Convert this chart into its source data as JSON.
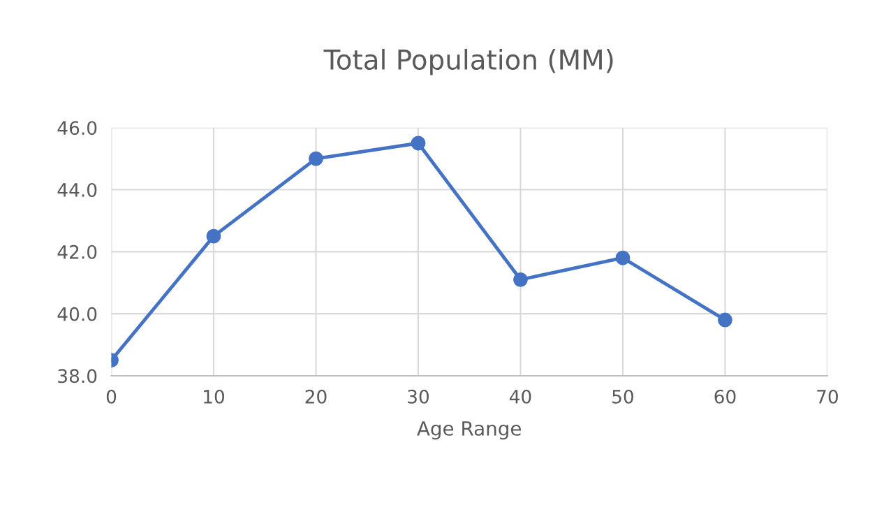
{
  "chart_data": {
    "type": "line",
    "title": "Total Population (MM)",
    "xlabel": "Age Range",
    "x": [
      0,
      10,
      20,
      30,
      40,
      50,
      60
    ],
    "series": [
      {
        "color": "#4472c4",
        "values": [
          38.5,
          42.5,
          45.0,
          45.5,
          41.1,
          41.8,
          39.8
        ]
      }
    ],
    "xlim": [
      0,
      70
    ],
    "xticks": [
      0,
      10,
      20,
      30,
      40,
      50,
      60,
      70
    ],
    "ylim": [
      38,
      46
    ],
    "yticks": [
      {
        "value": 38,
        "label": "38.0"
      },
      {
        "value": 40,
        "label": "40.0"
      },
      {
        "value": 42,
        "label": "42.0"
      },
      {
        "value": 44,
        "label": "44.0"
      },
      {
        "value": 46,
        "label": "46.0"
      }
    ],
    "grid": true,
    "marker": "circle",
    "line_style": "solid"
  }
}
